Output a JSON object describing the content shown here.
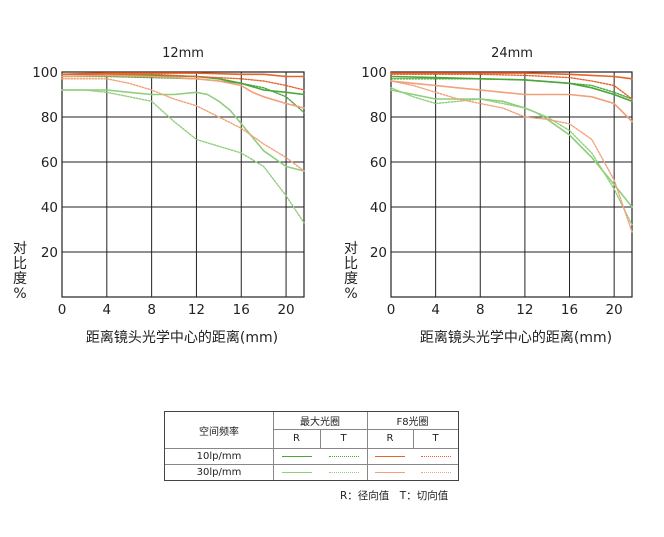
{
  "colors": {
    "green_10": "#4aa63a",
    "green_30": "#8fcf7c",
    "orange_10": "#e8622a",
    "orange_30": "#f2a07a",
    "grid": "#222222"
  },
  "chart_data": [
    {
      "type": "line",
      "title": "12mm",
      "xlabel": "距离镜头光学中心的距离(mm)",
      "ylabel": "对比度%",
      "xlim": [
        0,
        21.6
      ],
      "ylim": [
        0,
        100
      ],
      "xticks": [
        0,
        4,
        8,
        12,
        16,
        20
      ],
      "yticks": [
        20,
        40,
        60,
        80,
        100
      ],
      "grid": true,
      "series": [
        {
          "key": "max_10_R",
          "style": "green_10_solid",
          "x": [
            0,
            4,
            8,
            12,
            14,
            16,
            18,
            20,
            21.6
          ],
          "y": [
            99,
            99,
            98.5,
            98,
            97,
            95,
            92,
            91,
            90
          ]
        },
        {
          "key": "max_10_T",
          "style": "green_10_dotted",
          "x": [
            0,
            4,
            8,
            12,
            14,
            16,
            18,
            20,
            21.6
          ],
          "y": [
            98,
            98,
            97.5,
            97,
            96,
            95,
            93,
            89,
            82
          ]
        },
        {
          "key": "max_30_R",
          "style": "green_30_solid",
          "x": [
            0,
            2,
            4,
            6,
            8,
            10,
            12,
            13,
            14,
            15,
            16,
            18,
            20,
            21.6
          ],
          "y": [
            92,
            92,
            92,
            91,
            90,
            90,
            91,
            90,
            87,
            83,
            77,
            65,
            58,
            56
          ]
        },
        {
          "key": "max_30_T",
          "style": "green_30_dotted",
          "x": [
            0,
            2,
            4,
            6,
            8,
            10,
            12,
            14,
            16,
            18,
            20,
            21.6
          ],
          "y": [
            92,
            92,
            91,
            89,
            87,
            78,
            70,
            67,
            64,
            58,
            45,
            33
          ]
        },
        {
          "key": "f8_10_R",
          "style": "orange_10_solid",
          "x": [
            0,
            4,
            8,
            12,
            16,
            18,
            20,
            21.6
          ],
          "y": [
            99,
            99.5,
            99.5,
            99.5,
            99,
            99,
            98,
            98
          ]
        },
        {
          "key": "f8_10_T",
          "style": "orange_10_dotted",
          "x": [
            0,
            4,
            8,
            12,
            16,
            18,
            20,
            21.6
          ],
          "y": [
            99,
            99,
            99,
            98,
            97,
            96,
            94,
            92
          ]
        },
        {
          "key": "f8_30_R",
          "style": "orange_30_solid",
          "x": [
            0,
            4,
            8,
            10,
            12,
            14,
            16,
            17,
            18,
            20,
            21.6
          ],
          "y": [
            98,
            98.5,
            98,
            97.5,
            97,
            96,
            94,
            91,
            89,
            86,
            84
          ]
        },
        {
          "key": "f8_30_T",
          "style": "orange_30_dotted",
          "x": [
            0,
            4,
            6,
            8,
            10,
            12,
            14,
            16,
            18,
            20,
            21.6
          ],
          "y": [
            97,
            97,
            95,
            92,
            88,
            85,
            80,
            75,
            68,
            62,
            56
          ]
        }
      ]
    },
    {
      "type": "line",
      "title": "24mm",
      "xlabel": "距离镜头光学中心的距离(mm)",
      "ylabel": "对比度%",
      "xlim": [
        0,
        21.6
      ],
      "ylim": [
        0,
        100
      ],
      "xticks": [
        0,
        4,
        8,
        12,
        16,
        20
      ],
      "yticks": [
        20,
        40,
        60,
        80,
        100
      ],
      "grid": true,
      "series": [
        {
          "key": "max_10_R",
          "style": "green_10_solid",
          "x": [
            0,
            4,
            8,
            12,
            16,
            18,
            20,
            21.6
          ],
          "y": [
            98,
            97.5,
            97,
            96.5,
            95,
            93,
            90,
            87
          ]
        },
        {
          "key": "max_10_T",
          "style": "green_10_dotted",
          "x": [
            0,
            4,
            8,
            12,
            16,
            18,
            20,
            21.6
          ],
          "y": [
            97,
            97,
            97,
            96.5,
            95,
            94,
            91,
            88
          ]
        },
        {
          "key": "max_30_R",
          "style": "green_30_solid",
          "x": [
            0,
            2,
            4,
            6,
            8,
            10,
            12,
            13,
            14,
            16,
            18,
            20,
            21.6
          ],
          "y": [
            92,
            90,
            88,
            88,
            88,
            87,
            84,
            82,
            79,
            72,
            62,
            50,
            40
          ]
        },
        {
          "key": "max_30_T",
          "style": "green_30_dotted",
          "x": [
            0,
            2,
            4,
            6,
            8,
            10,
            12,
            14,
            16,
            18,
            20,
            21.6
          ],
          "y": [
            93,
            89,
            86,
            87,
            88,
            86,
            84,
            80,
            74,
            64,
            48,
            32
          ]
        },
        {
          "key": "f8_10_R",
          "style": "orange_10_solid",
          "x": [
            0,
            4,
            8,
            12,
            16,
            18,
            20,
            21.6
          ],
          "y": [
            99.5,
            99.5,
            99.5,
            99.5,
            99,
            98.5,
            98,
            97
          ]
        },
        {
          "key": "f8_10_T",
          "style": "orange_10_dotted",
          "x": [
            0,
            4,
            8,
            12,
            16,
            18,
            20,
            21.6
          ],
          "y": [
            99,
            99,
            99,
            98.5,
            97.5,
            96,
            94,
            88
          ]
        },
        {
          "key": "f8_30_R",
          "style": "orange_30_solid",
          "x": [
            0,
            2,
            4,
            6,
            8,
            10,
            12,
            14,
            16,
            18,
            20,
            21.6
          ],
          "y": [
            96,
            95,
            94,
            93,
            92,
            91,
            90,
            90,
            90,
            89,
            86,
            78
          ]
        },
        {
          "key": "f8_30_T",
          "style": "orange_30_dotted",
          "x": [
            0,
            2,
            4,
            6,
            8,
            10,
            12,
            14,
            16,
            18,
            20,
            21.6
          ],
          "y": [
            96,
            94,
            91,
            88,
            86,
            84,
            80,
            79,
            77,
            70,
            52,
            29
          ]
        }
      ]
    }
  ],
  "legend": {
    "col_freq": "空间频率",
    "col_max": "最大光圈",
    "col_f8": "F8光圈",
    "r": "R",
    "t": "T",
    "row_10": "10lp/mm",
    "row_30": "30lp/mm"
  },
  "footnote": "R：径向值　T：切向值"
}
